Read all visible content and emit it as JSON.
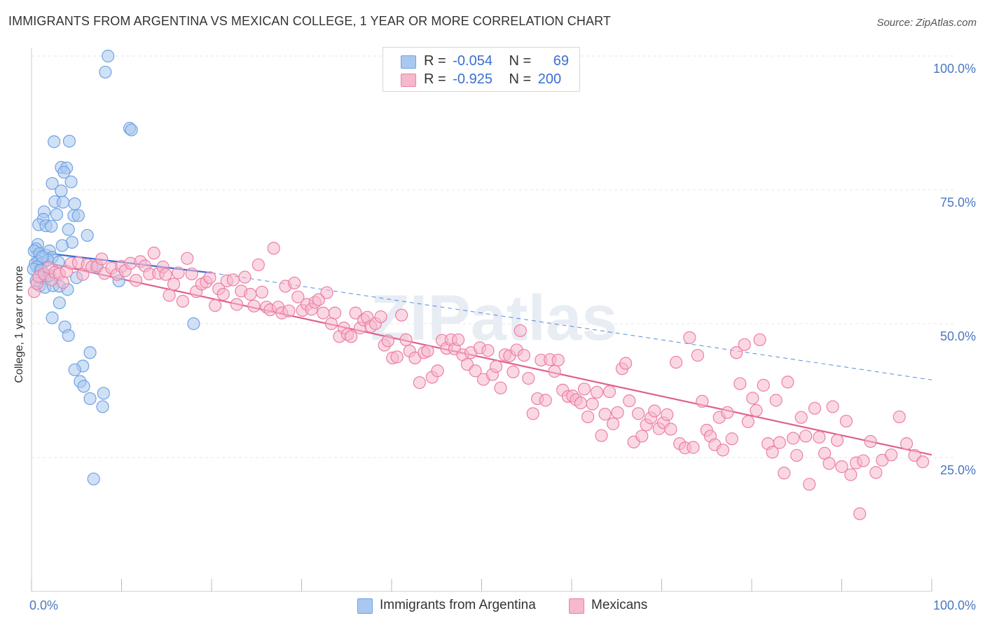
{
  "title": "IMMIGRANTS FROM ARGENTINA VS MEXICAN COLLEGE, 1 YEAR OR MORE CORRELATION CHART",
  "source": "Source: ZipAtlas.com",
  "watermark": "ZIPatlas",
  "legend": {
    "rows": [
      {
        "r_label": "R =",
        "r_value": "-0.054",
        "n_label": "N =",
        "n_value": "69",
        "color": "#a9c8ef"
      },
      {
        "r_label": "R =",
        "r_value": "-0.925",
        "n_label": "N =",
        "n_value": "200",
        "color": "#f6b8cc"
      }
    ]
  },
  "bottom_legend": [
    {
      "label": "Immigrants from Argentina",
      "color": "#a9c8ef"
    },
    {
      "label": "Mexicans",
      "color": "#f6b8cc"
    }
  ],
  "chart_data": {
    "type": "scatter",
    "title": "IMMIGRANTS FROM ARGENTINA VS MEXICAN COLLEGE, 1 YEAR OR MORE CORRELATION CHART",
    "xlabel": "",
    "ylabel": "College, 1 year or more",
    "xlim": [
      0,
      100
    ],
    "ylim": [
      0,
      100
    ],
    "x_tick_labels": [
      "0.0%",
      "100.0%"
    ],
    "y_tick_labels": [
      "100.0%",
      "75.0%",
      "50.0%",
      "25.0%"
    ],
    "y_ticks": [
      100,
      75,
      50,
      25
    ],
    "grid": true,
    "legend_position": "top-center",
    "series": [
      {
        "name": "Immigrants from Argentina",
        "color": "#6fa2e4",
        "fill": "#a9c8ef",
        "trend_line_color": "#2f6fd6",
        "trend": {
          "x0": 0,
          "y0": 63.5,
          "x1": 20,
          "y1": 59.5,
          "dash_to_x": 100,
          "dash_to_y": 39.5
        },
        "points": [
          [
            8.5,
            100.0
          ],
          [
            8.2,
            97.0
          ],
          [
            10.9,
            86.5
          ],
          [
            11.1,
            86.2
          ],
          [
            2.5,
            84.0
          ],
          [
            4.2,
            84.1
          ],
          [
            3.3,
            79.2
          ],
          [
            3.9,
            79.1
          ],
          [
            3.6,
            78.3
          ],
          [
            2.3,
            76.2
          ],
          [
            4.4,
            76.5
          ],
          [
            3.3,
            74.8
          ],
          [
            2.6,
            72.8
          ],
          [
            3.5,
            72.7
          ],
          [
            4.8,
            72.4
          ],
          [
            1.4,
            70.9
          ],
          [
            2.8,
            70.4
          ],
          [
            4.7,
            70.2
          ],
          [
            5.2,
            70.2
          ],
          [
            1.3,
            69.5
          ],
          [
            0.8,
            68.5
          ],
          [
            1.6,
            68.3
          ],
          [
            2.2,
            68.2
          ],
          [
            4.1,
            67.6
          ],
          [
            6.2,
            66.5
          ],
          [
            4.5,
            65.2
          ],
          [
            0.7,
            64.8
          ],
          [
            3.4,
            64.6
          ],
          [
            0.5,
            64.0
          ],
          [
            0.3,
            63.6
          ],
          [
            0.9,
            63.1
          ],
          [
            1.6,
            62.8
          ],
          [
            2.0,
            63.6
          ],
          [
            2.3,
            62.4
          ],
          [
            0.7,
            61.6
          ],
          [
            0.4,
            61.2
          ],
          [
            1.3,
            61.4
          ],
          [
            1.8,
            61.9
          ],
          [
            0.6,
            60.6
          ],
          [
            0.2,
            60.2
          ],
          [
            1.1,
            59.9
          ],
          [
            7.2,
            60.5
          ],
          [
            1.5,
            58.5
          ],
          [
            0.9,
            57.1
          ],
          [
            1.5,
            56.8
          ],
          [
            2.4,
            57.1
          ],
          [
            3.1,
            57.0
          ],
          [
            4.0,
            56.4
          ],
          [
            5.0,
            58.6
          ],
          [
            9.7,
            58.0
          ],
          [
            3.1,
            53.9
          ],
          [
            2.3,
            51.1
          ],
          [
            3.7,
            49.4
          ],
          [
            4.1,
            47.8
          ],
          [
            18.0,
            50.0
          ],
          [
            6.5,
            44.6
          ],
          [
            5.7,
            42.1
          ],
          [
            4.8,
            41.4
          ],
          [
            5.4,
            39.2
          ],
          [
            5.8,
            38.3
          ],
          [
            8.0,
            37.0
          ],
          [
            6.5,
            36.0
          ],
          [
            7.9,
            34.5
          ],
          [
            6.9,
            21.0
          ],
          [
            1.0,
            60.0
          ],
          [
            0.5,
            58.0
          ],
          [
            2.0,
            59.0
          ],
          [
            1.2,
            62.5
          ],
          [
            3.0,
            61.5
          ]
        ]
      },
      {
        "name": "Mexicans",
        "color": "#ec7fa4",
        "fill": "#f6b8cc",
        "trend_line_color": "#e0608d",
        "trend": {
          "x0": 0,
          "y0": 62.0,
          "x1": 100,
          "y1": 25.5
        },
        "points": [
          [
            0.3,
            56.0
          ],
          [
            0.6,
            57.5
          ],
          [
            0.8,
            58.8
          ],
          [
            1.4,
            59.3
          ],
          [
            1.9,
            60.5
          ],
          [
            2.2,
            58.2
          ],
          [
            2.6,
            59.6
          ],
          [
            3.1,
            59.3
          ],
          [
            3.5,
            57.7
          ],
          [
            3.9,
            59.8
          ],
          [
            4.4,
            61.3
          ],
          [
            5.2,
            61.4
          ],
          [
            5.7,
            59.2
          ],
          [
            6.2,
            61.0
          ],
          [
            6.7,
            60.6
          ],
          [
            7.3,
            60.8
          ],
          [
            7.8,
            62.1
          ],
          [
            8.1,
            59.4
          ],
          [
            8.9,
            60.4
          ],
          [
            9.5,
            59.2
          ],
          [
            10.0,
            60.7
          ],
          [
            10.4,
            59.9
          ],
          [
            11.0,
            61.3
          ],
          [
            11.6,
            58.1
          ],
          [
            12.1,
            61.6
          ],
          [
            12.6,
            60.8
          ],
          [
            13.1,
            59.3
          ],
          [
            13.6,
            63.2
          ],
          [
            14.1,
            59.4
          ],
          [
            14.6,
            60.6
          ],
          [
            14.9,
            59.2
          ],
          [
            15.3,
            55.3
          ],
          [
            15.8,
            57.4
          ],
          [
            16.3,
            59.5
          ],
          [
            16.8,
            54.2
          ],
          [
            17.3,
            62.2
          ],
          [
            17.8,
            59.3
          ],
          [
            18.3,
            56.0
          ],
          [
            18.9,
            57.4
          ],
          [
            19.4,
            57.8
          ],
          [
            19.8,
            58.6
          ],
          [
            20.4,
            53.4
          ],
          [
            20.8,
            56.5
          ],
          [
            21.3,
            55.5
          ],
          [
            21.7,
            58.0
          ],
          [
            22.4,
            58.2
          ],
          [
            22.8,
            53.6
          ],
          [
            23.3,
            56.1
          ],
          [
            23.7,
            58.7
          ],
          [
            24.3,
            55.5
          ],
          [
            24.7,
            53.3
          ],
          [
            25.2,
            61.0
          ],
          [
            25.6,
            55.9
          ],
          [
            26.1,
            53.1
          ],
          [
            26.5,
            52.6
          ],
          [
            26.9,
            64.1
          ],
          [
            27.4,
            53.1
          ],
          [
            27.8,
            52.0
          ],
          [
            28.2,
            57.0
          ],
          [
            28.6,
            52.4
          ],
          [
            29.2,
            57.6
          ],
          [
            29.6,
            55.0
          ],
          [
            30.1,
            52.5
          ],
          [
            30.6,
            53.6
          ],
          [
            31.1,
            52.7
          ],
          [
            31.5,
            54.0
          ],
          [
            31.9,
            54.5
          ],
          [
            32.4,
            52.0
          ],
          [
            32.8,
            55.8
          ],
          [
            33.3,
            50.0
          ],
          [
            33.7,
            52.0
          ],
          [
            34.2,
            47.6
          ],
          [
            34.7,
            49.2
          ],
          [
            35.1,
            48.0
          ],
          [
            35.5,
            47.6
          ],
          [
            36.0,
            52.0
          ],
          [
            36.5,
            49.2
          ],
          [
            36.9,
            50.7
          ],
          [
            37.3,
            51.2
          ],
          [
            37.7,
            49.5
          ],
          [
            38.2,
            50.0
          ],
          [
            38.8,
            51.3
          ],
          [
            39.2,
            46.0
          ],
          [
            39.6,
            46.8
          ],
          [
            40.1,
            43.6
          ],
          [
            40.6,
            43.8
          ],
          [
            41.1,
            51.6
          ],
          [
            41.6,
            47.0
          ],
          [
            42.0,
            44.9
          ],
          [
            42.6,
            43.6
          ],
          [
            43.1,
            39.0
          ],
          [
            43.6,
            44.6
          ],
          [
            44.0,
            44.9
          ],
          [
            44.5,
            40.0
          ],
          [
            45.1,
            41.2
          ],
          [
            45.6,
            46.9
          ],
          [
            46.1,
            45.4
          ],
          [
            46.6,
            47.0
          ],
          [
            47.0,
            45.3
          ],
          [
            47.4,
            47.0
          ],
          [
            47.9,
            44.2
          ],
          [
            48.4,
            42.4
          ],
          [
            48.8,
            44.6
          ],
          [
            49.3,
            41.2
          ],
          [
            49.8,
            45.5
          ],
          [
            50.2,
            39.6
          ],
          [
            50.7,
            45.0
          ],
          [
            51.2,
            40.5
          ],
          [
            51.6,
            42.0
          ],
          [
            52.1,
            38.0
          ],
          [
            52.6,
            44.2
          ],
          [
            53.1,
            44.0
          ],
          [
            53.5,
            41.0
          ],
          [
            53.9,
            45.1
          ],
          [
            54.3,
            48.7
          ],
          [
            54.7,
            44.1
          ],
          [
            55.2,
            39.8
          ],
          [
            55.7,
            33.2
          ],
          [
            56.2,
            36.0
          ],
          [
            56.6,
            43.2
          ],
          [
            57.1,
            35.7
          ],
          [
            57.6,
            43.3
          ],
          [
            58.1,
            41.1
          ],
          [
            58.5,
            43.2
          ],
          [
            59.0,
            37.6
          ],
          [
            59.6,
            36.4
          ],
          [
            60.1,
            36.5
          ],
          [
            60.5,
            35.8
          ],
          [
            61.0,
            35.2
          ],
          [
            61.4,
            37.8
          ],
          [
            61.8,
            32.6
          ],
          [
            62.3,
            35.0
          ],
          [
            62.8,
            37.2
          ],
          [
            63.3,
            29.1
          ],
          [
            63.7,
            33.1
          ],
          [
            64.2,
            37.3
          ],
          [
            64.6,
            31.3
          ],
          [
            65.1,
            33.4
          ],
          [
            65.6,
            41.6
          ],
          [
            66.0,
            42.6
          ],
          [
            66.4,
            35.6
          ],
          [
            66.9,
            27.9
          ],
          [
            67.4,
            33.2
          ],
          [
            67.8,
            29.0
          ],
          [
            68.3,
            31.1
          ],
          [
            68.8,
            32.4
          ],
          [
            69.2,
            33.7
          ],
          [
            69.7,
            30.4
          ],
          [
            70.2,
            31.5
          ],
          [
            70.6,
            33.0
          ],
          [
            71.0,
            30.3
          ],
          [
            71.6,
            42.8
          ],
          [
            72.0,
            27.6
          ],
          [
            72.6,
            26.8
          ],
          [
            73.1,
            47.4
          ],
          [
            73.5,
            26.9
          ],
          [
            74.0,
            44.1
          ],
          [
            74.5,
            35.5
          ],
          [
            75.0,
            30.1
          ],
          [
            75.4,
            29.0
          ],
          [
            75.9,
            27.4
          ],
          [
            76.4,
            32.5
          ],
          [
            76.8,
            26.4
          ],
          [
            77.3,
            33.4
          ],
          [
            77.8,
            28.5
          ],
          [
            78.3,
            44.6
          ],
          [
            78.7,
            38.8
          ],
          [
            79.2,
            46.1
          ],
          [
            79.6,
            31.7
          ],
          [
            80.1,
            36.1
          ],
          [
            80.5,
            33.8
          ],
          [
            80.9,
            47.0
          ],
          [
            81.3,
            38.5
          ],
          [
            81.8,
            27.6
          ],
          [
            82.3,
            26.0
          ],
          [
            82.7,
            35.7
          ],
          [
            83.1,
            27.8
          ],
          [
            83.6,
            22.1
          ],
          [
            84.0,
            39.1
          ],
          [
            84.6,
            28.6
          ],
          [
            85.0,
            25.4
          ],
          [
            85.5,
            32.5
          ],
          [
            86.0,
            29.0
          ],
          [
            86.4,
            20.0
          ],
          [
            87.0,
            34.2
          ],
          [
            87.5,
            28.8
          ],
          [
            88.1,
            25.8
          ],
          [
            88.6,
            23.9
          ],
          [
            89.0,
            34.5
          ],
          [
            89.5,
            28.2
          ],
          [
            90.0,
            23.3
          ],
          [
            90.5,
            31.8
          ],
          [
            91.0,
            21.8
          ],
          [
            91.6,
            24.0
          ],
          [
            92.0,
            14.5
          ],
          [
            92.4,
            24.4
          ],
          [
            93.2,
            28.0
          ],
          [
            93.8,
            22.2
          ],
          [
            94.5,
            24.5
          ],
          [
            95.5,
            25.5
          ],
          [
            96.4,
            32.6
          ],
          [
            97.2,
            27.6
          ],
          [
            98.1,
            25.4
          ],
          [
            99.0,
            24.2
          ]
        ]
      }
    ]
  }
}
